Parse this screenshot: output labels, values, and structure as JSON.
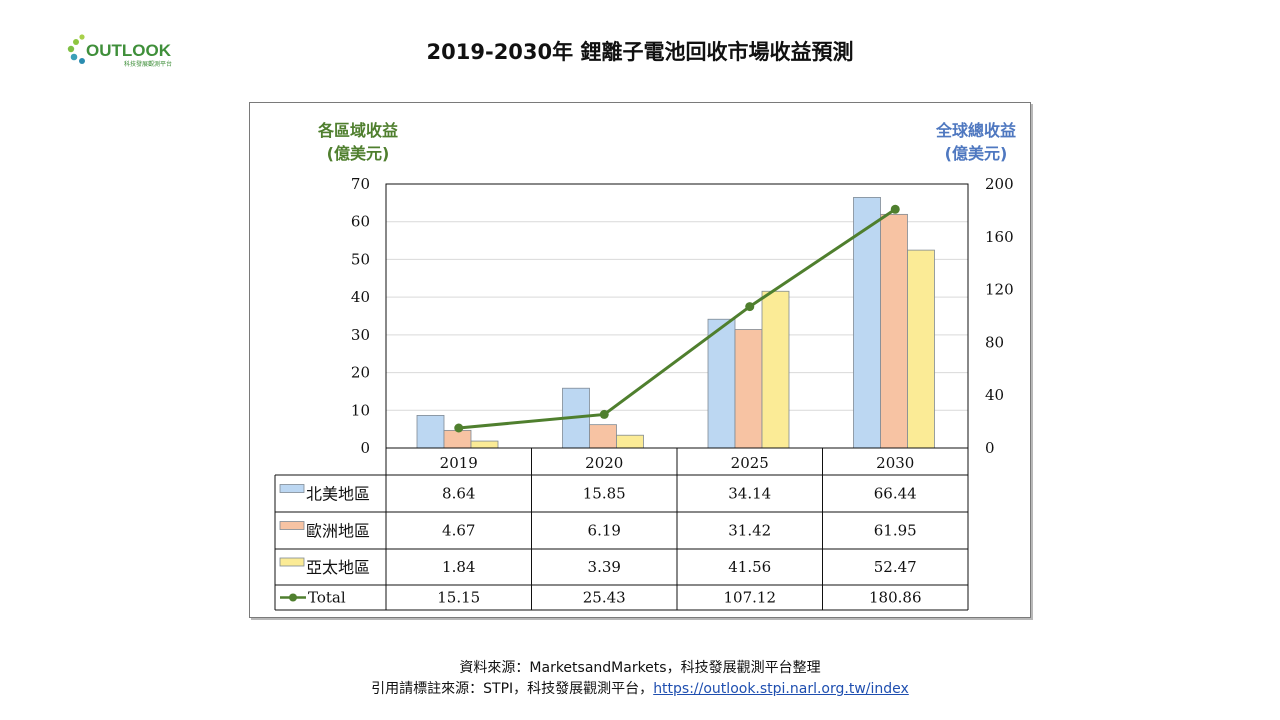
{
  "header": {
    "title": "2019-2030年 鋰離子電池回收市場收益預測",
    "logo_text": "OUTLOOK",
    "logo_subtext": "科技發展觀測平台"
  },
  "colors": {
    "north_america": "#bcd7f2",
    "europe": "#f7c3a3",
    "asia_pacific": "#fbeb96",
    "total_line": "#4f7f2e",
    "left_axis_title": "#4f7f2e",
    "right_axis_title": "#4f78c0"
  },
  "chart_data": {
    "type": "bar",
    "combo": "clustered bar + line on secondary axis, with data table",
    "categories": [
      "2019",
      "2020",
      "2025",
      "2030"
    ],
    "series": [
      {
        "name": "北美地區",
        "type": "bar",
        "axis": "left",
        "values": [
          8.64,
          15.85,
          34.14,
          66.44
        ],
        "display": [
          "8.64",
          "15.85",
          "34.14",
          "66.44"
        ]
      },
      {
        "name": "歐洲地區",
        "type": "bar",
        "axis": "left",
        "values": [
          4.67,
          6.19,
          31.42,
          61.95
        ],
        "display": [
          "4.67",
          "6.19",
          "31.42",
          "61.95"
        ]
      },
      {
        "name": "亞太地區",
        "type": "bar",
        "axis": "left",
        "values": [
          1.84,
          3.39,
          41.56,
          52.47
        ],
        "display": [
          "1.84",
          "3.39",
          "41.56",
          "52.47"
        ]
      },
      {
        "name": "Total",
        "type": "line",
        "axis": "right",
        "values": [
          15.15,
          25.43,
          107.12,
          180.86
        ],
        "display": [
          "15.15",
          "25.43",
          "107.12",
          "180.86"
        ]
      }
    ],
    "left_axis_title": [
      "各區域收益",
      "(億美元)"
    ],
    "right_axis_title": [
      "全球總收益",
      "(億美元)"
    ],
    "left_ticks": [
      "0",
      "10",
      "20",
      "30",
      "40",
      "50",
      "60",
      "70"
    ],
    "right_ticks": [
      "0",
      "40",
      "80",
      "120",
      "160",
      "200"
    ],
    "ylim_left": [
      0,
      70
    ],
    "ylim_right": [
      0,
      200
    ],
    "grid": true,
    "legend": "data-table"
  },
  "footer": {
    "source_line": "資料來源：MarketsandMarkets，科技發展觀測平台整理",
    "cite_prefix": "引用請標註來源：STPI，科技發展觀測平台，",
    "cite_link": "https://outlook.stpi.narl.org.tw/index"
  }
}
